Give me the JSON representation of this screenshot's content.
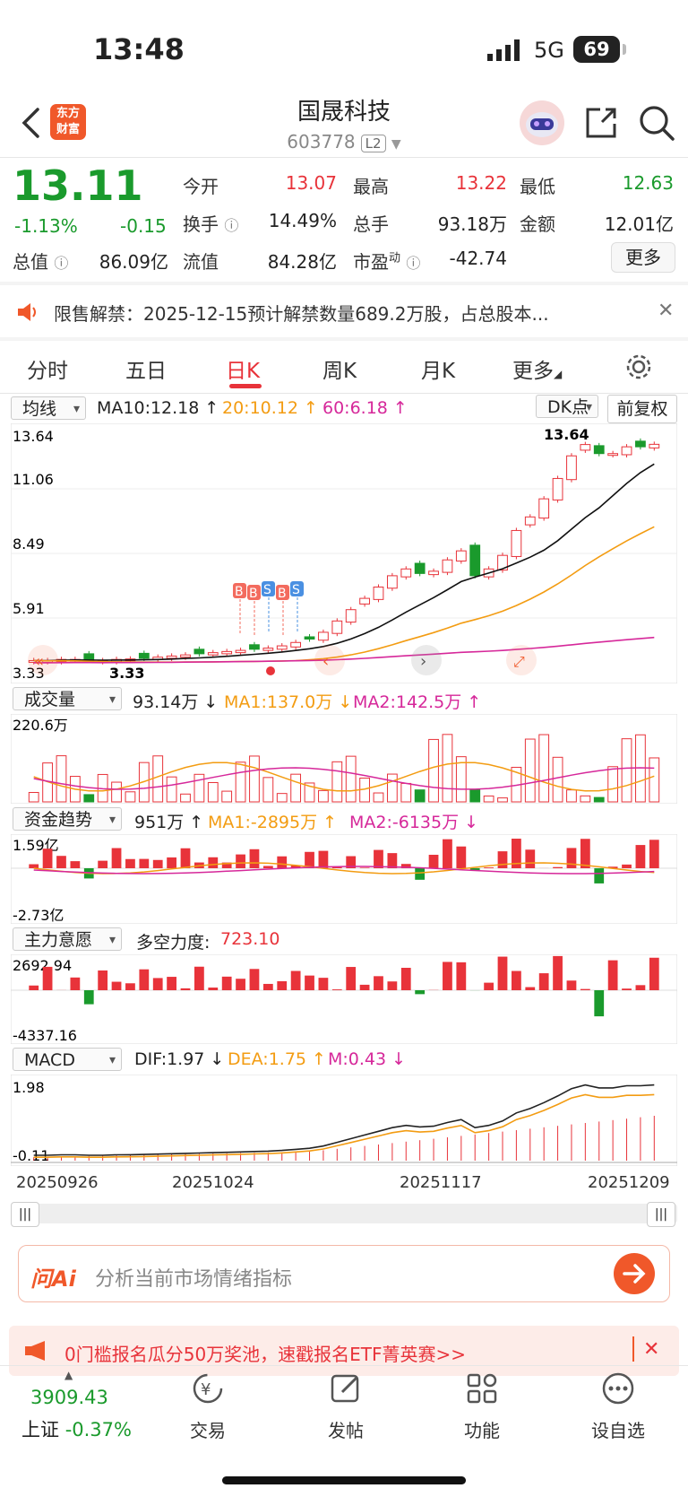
{
  "status": {
    "time": "13:48",
    "network": "5G",
    "battery": "69"
  },
  "header": {
    "logo_line1": "东方",
    "logo_line2": "财富",
    "title": "国晟科技",
    "code": "603778",
    "level": "L2"
  },
  "quote": {
    "price": "13.11",
    "change_pct": "-1.13%",
    "change": "-0.15",
    "open_label": "今开",
    "open": "13.07",
    "high_label": "最高",
    "high": "13.22",
    "low_label": "最低",
    "low": "12.63",
    "turnover_label": "换手",
    "turnover": "14.49%",
    "volume_label": "总手",
    "volume": "93.18万",
    "amount_label": "金额",
    "amount": "12.01亿",
    "mktcap_label": "总值",
    "mktcap": "86.09亿",
    "float_label": "流值",
    "float": "84.28亿",
    "pe_label": "市盈",
    "pe_sup": "动",
    "pe": "-42.74",
    "more_label": "更多"
  },
  "notice": {
    "text": "限售解禁：2025-12-15预计解禁数量689.2万股，占总股本..."
  },
  "tabs": [
    {
      "label": "分时"
    },
    {
      "label": "五日"
    },
    {
      "label": "日K"
    },
    {
      "label": "周K"
    },
    {
      "label": "月K"
    },
    {
      "label": "更多"
    }
  ],
  "kline": {
    "ma_select": "均线",
    "ma10": "MA10:12.18 ↑",
    "ma20": "20:10.12 ↑",
    "ma60": "60:6.18 ↑",
    "dk_label": "DK点",
    "adjust_label": "前复权",
    "y_ticks": [
      "13.64",
      "11.06",
      "8.49",
      "5.91",
      "3.33"
    ],
    "max_label": "13.64",
    "min_label": "3.33",
    "markers": [
      "B",
      "B",
      "S",
      "B",
      "S"
    ]
  },
  "volume": {
    "select": "成交量",
    "value": "93.14万 ↓",
    "ma1": "MA1:137.0万 ↓",
    "ma2": "MA2:142.5万 ↑",
    "y_top": "220.6万"
  },
  "fund": {
    "select": "资金趋势",
    "value": "951万 ↑",
    "ma1": "MA1:-2895万 ↑",
    "ma2": "MA2:-6135万 ↓",
    "y_top": "1.59亿",
    "y_bottom": "-2.73亿"
  },
  "main_force": {
    "select": "主力意愿",
    "label": "多空力度:",
    "value": "723.10",
    "y_top": "2692.94",
    "y_bottom": "-4337.16"
  },
  "macd": {
    "select": "MACD",
    "dif": "DIF:1.97 ↓",
    "dea": "DEA:1.75 ↑",
    "m": "M:0.43 ↓",
    "y_top": "1.98",
    "y_bottom": "-0.11"
  },
  "dates": [
    "20250926",
    "20251024",
    "20251117",
    "20251209"
  ],
  "ai": {
    "brand": "问Ai",
    "placeholder": "分析当前市场情绪指标"
  },
  "banner": {
    "text": "0门槛报名瓜分50万奖池，速戳报名ETF菁英赛>>"
  },
  "bottom_nav": {
    "index_value": "3909.43",
    "index_name": "上证",
    "index_change": "-0.37%",
    "items": [
      {
        "label": "交易"
      },
      {
        "label": "发帖"
      },
      {
        "label": "功能"
      },
      {
        "label": "设自选"
      }
    ]
  },
  "colors": {
    "up": "#e8333a",
    "down": "#1a9a2c",
    "accent": "#f0582a",
    "ma10": "#111111",
    "ma20": "#f39c12",
    "ma60": "#d6289a"
  },
  "chart_data": [
    {
      "type": "candlestick",
      "y_ticks": [
        13.64,
        11.06,
        8.49,
        5.91,
        3.33
      ],
      "ylim": [
        3.33,
        13.64
      ],
      "x_ticks": [
        "20250926",
        "20251024",
        "20251117",
        "20251209"
      ],
      "close": [
        3.55,
        3.55,
        3.6,
        3.6,
        3.55,
        3.55,
        3.6,
        3.62,
        3.65,
        3.7,
        3.75,
        3.8,
        3.85,
        3.9,
        3.95,
        4.0,
        4.05,
        4.1,
        4.2,
        4.35,
        4.5,
        4.8,
        5.3,
        5.8,
        6.3,
        6.8,
        7.3,
        7.6,
        7.4,
        7.5,
        8.0,
        8.4,
        7.3,
        7.6,
        8.2,
        9.3,
        9.9,
        10.7,
        11.6,
        12.6,
        13.1,
        12.7,
        12.7,
        13.0,
        13.0,
        13.11
      ],
      "series": [
        {
          "name": "MA10",
          "color": "#111111"
        },
        {
          "name": "MA20",
          "color": "#f39c12"
        },
        {
          "name": "MA60",
          "color": "#d6289a"
        }
      ]
    },
    {
      "type": "bar",
      "name": "成交量",
      "y_top": "220.6万"
    },
    {
      "type": "bar",
      "name": "资金趋势",
      "ylim": [
        "-2.73亿",
        "1.59亿"
      ]
    },
    {
      "type": "bar",
      "name": "主力意愿",
      "ylim": [
        -4337.16,
        2692.94
      ]
    },
    {
      "type": "bar",
      "name": "MACD",
      "ylim": [
        -0.11,
        1.98
      ]
    }
  ]
}
